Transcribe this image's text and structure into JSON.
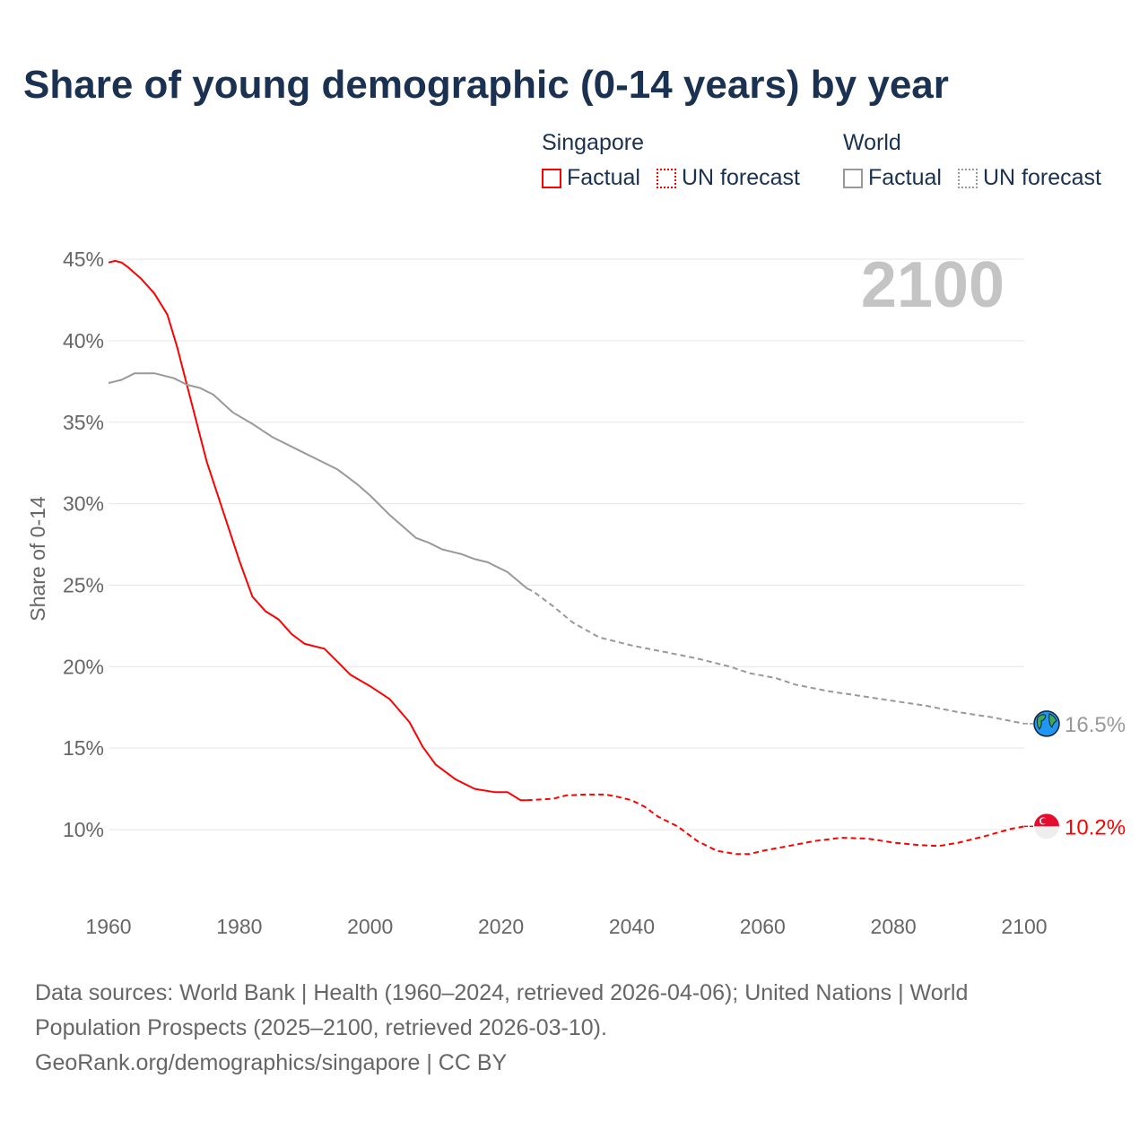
{
  "chart_data": {
    "type": "line",
    "title": "Share of young demographic (0-14 years) by year",
    "xlabel": "",
    "ylabel": "Share of 0-14",
    "xlim": [
      1960,
      2100
    ],
    "ylim": [
      6,
      45.5
    ],
    "x_ticks": [
      1960,
      1980,
      2000,
      2020,
      2040,
      2060,
      2080,
      2100
    ],
    "x_tick_labels": [
      "1960",
      "1980",
      "2000",
      "2020",
      "2040",
      "2060",
      "2080",
      "2100"
    ],
    "y_ticks": [
      10,
      15,
      20,
      25,
      30,
      35,
      40,
      45
    ],
    "y_tick_labels": [
      "10%",
      "15%",
      "20%",
      "25%",
      "30%",
      "35%",
      "40%",
      "45%"
    ],
    "grid": true,
    "year_watermark": "2100",
    "legend": {
      "placement": "top-right",
      "groups": [
        {
          "name": "Singapore",
          "color": "#ff0000",
          "items": [
            "Factual",
            "UN forecast"
          ]
        },
        {
          "name": "World",
          "color": "#999999",
          "items": [
            "Factual",
            "UN forecast"
          ]
        }
      ]
    },
    "series": [
      {
        "name": "Singapore Factual",
        "color": "#ff0000",
        "style": "solid",
        "x": [
          1960,
          1961,
          1962,
          1963,
          1965,
          1967,
          1969,
          1970.5,
          1975,
          1980,
          1982,
          1984,
          1986,
          1988,
          1990,
          1993,
          1995,
          1997,
          2000,
          2003,
          2006,
          2008,
          2010,
          2013,
          2016,
          2019,
          2021,
          2023,
          2024
        ],
        "y": [
          44.8,
          44.9,
          44.8,
          44.5,
          43.8,
          42.9,
          41.6,
          39.6,
          32.6,
          26.5,
          24.3,
          23.4,
          22.9,
          22.0,
          21.4,
          21.1,
          20.3,
          19.5,
          18.8,
          18.0,
          16.6,
          15.1,
          14.0,
          13.1,
          12.5,
          12.3,
          12.3,
          11.8,
          11.8
        ]
      },
      {
        "name": "Singapore UN forecast",
        "color": "#ff0000",
        "style": "dashed",
        "x": [
          2024,
          2028,
          2030,
          2033,
          2036,
          2038,
          2040,
          2042,
          2044,
          2047,
          2050,
          2053,
          2056,
          2058,
          2060,
          2064,
          2068,
          2072,
          2076,
          2080,
          2084,
          2087,
          2090,
          2094,
          2098,
          2100
        ],
        "y": [
          11.8,
          11.9,
          12.1,
          12.15,
          12.15,
          12.0,
          11.8,
          11.4,
          10.8,
          10.2,
          9.3,
          8.7,
          8.5,
          8.5,
          8.7,
          9.0,
          9.3,
          9.5,
          9.45,
          9.2,
          9.05,
          9.0,
          9.2,
          9.6,
          10.05,
          10.2
        ]
      },
      {
        "name": "World Factual",
        "color": "#999999",
        "style": "solid",
        "x": [
          1960,
          1962,
          1964,
          1967,
          1970,
          1972,
          1974,
          1976,
          1979,
          1982,
          1985,
          1990,
          1995,
          1998,
          2000,
          2003,
          2005,
          2007,
          2009,
          2011,
          2014,
          2016,
          2018,
          2021,
          2024
        ],
        "y": [
          37.4,
          37.6,
          38.0,
          38.0,
          37.7,
          37.3,
          37.1,
          36.7,
          35.6,
          34.9,
          34.1,
          33.1,
          32.1,
          31.2,
          30.5,
          29.3,
          28.6,
          27.9,
          27.6,
          27.2,
          26.9,
          26.6,
          26.4,
          25.8,
          24.8
        ]
      },
      {
        "name": "World UN forecast",
        "color": "#999999",
        "style": "dashed",
        "x": [
          2024,
          2025,
          2028,
          2031,
          2035,
          2040,
          2045,
          2050,
          2055,
          2058,
          2062,
          2065,
          2070,
          2075,
          2080,
          2085,
          2090,
          2095,
          2100
        ],
        "y": [
          24.8,
          24.6,
          23.7,
          22.7,
          21.8,
          21.3,
          20.9,
          20.5,
          20.0,
          19.6,
          19.3,
          18.9,
          18.5,
          18.2,
          17.9,
          17.6,
          17.2,
          16.9,
          16.5
        ]
      }
    ],
    "end_labels": [
      {
        "series": "World",
        "text": "16.5%",
        "value": 16.5,
        "icon": "globe-icon",
        "color": "#999999"
      },
      {
        "series": "Singapore",
        "text": "10.2%",
        "value": 10.2,
        "icon": "singapore-flag-icon",
        "color": "#ff0000"
      }
    ]
  },
  "footer": {
    "sources": "Data sources: World Bank | Health (1960–2024, retrieved 2026-04-06); United Nations | World Population Prospects (2025–2100, retrieved 2026-03-10).",
    "credit": "GeoRank.org/demographics/singapore | CC BY"
  }
}
